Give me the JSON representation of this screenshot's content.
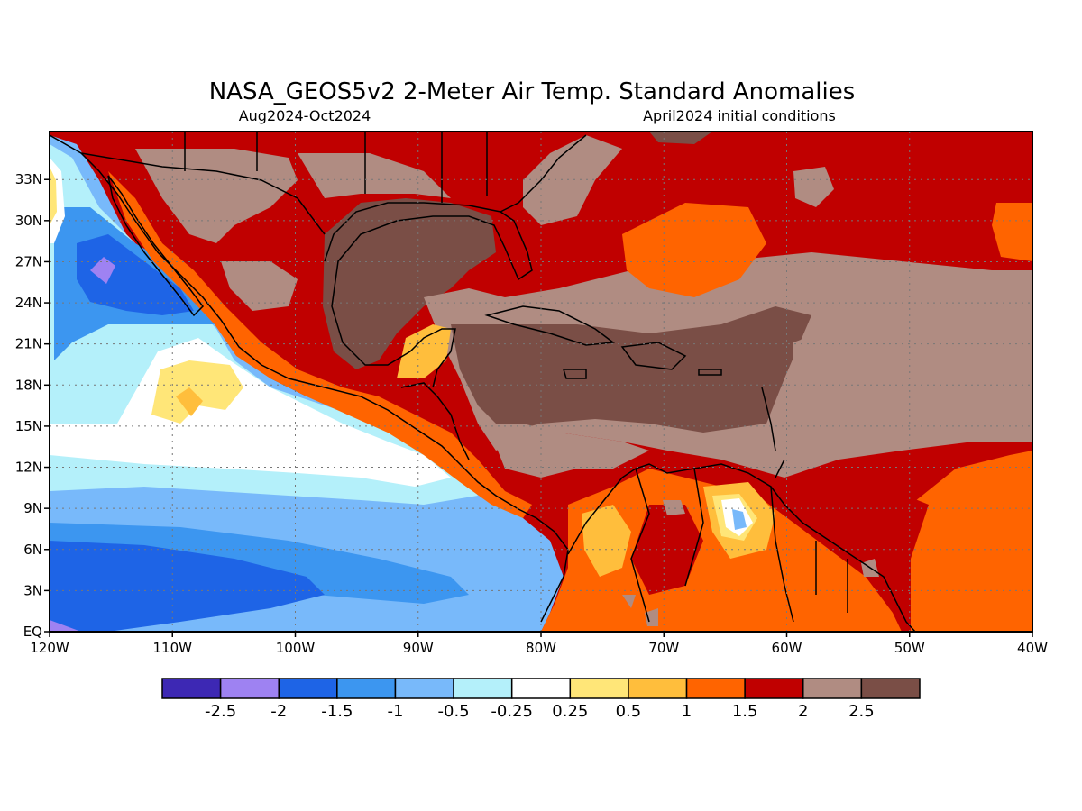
{
  "title": "NASA_GEOS5v2 2-Meter Air Temp. Standard Anomalies",
  "subtitle_left": "Aug2024-Oct2024",
  "subtitle_right": "April2024 initial conditions",
  "map": {
    "lon_range": [
      -120,
      -40
    ],
    "lat_range": [
      0,
      35
    ],
    "x_ticks": [
      {
        "value": -120,
        "label": "120W"
      },
      {
        "value": -110,
        "label": "110W"
      },
      {
        "value": -100,
        "label": "100W"
      },
      {
        "value": -90,
        "label": "90W"
      },
      {
        "value": -80,
        "label": "80W"
      },
      {
        "value": -70,
        "label": "70W"
      },
      {
        "value": -60,
        "label": "60W"
      },
      {
        "value": -50,
        "label": "50W"
      },
      {
        "value": -40,
        "label": "40W"
      }
    ],
    "y_ticks": [
      {
        "value": 0,
        "label": "EQ"
      },
      {
        "value": 3,
        "label": "3N"
      },
      {
        "value": 6,
        "label": "6N"
      },
      {
        "value": 9,
        "label": "9N"
      },
      {
        "value": 12,
        "label": "12N"
      },
      {
        "value": 15,
        "label": "15N"
      },
      {
        "value": 18,
        "label": "18N"
      },
      {
        "value": 21,
        "label": "21N"
      },
      {
        "value": 24,
        "label": "24N"
      },
      {
        "value": 27,
        "label": "27N"
      },
      {
        "value": 30,
        "label": "30N"
      },
      {
        "value": 33,
        "label": "33N"
      }
    ],
    "grid": "dotted"
  },
  "colorbar": {
    "colors": [
      "#3d28b4",
      "#9e82f2",
      "#1e64e6",
      "#3c96f0",
      "#78b9fa",
      "#b4f0fa",
      "#ffffff",
      "#ffe678",
      "#ffbe3c",
      "#ff6400",
      "#c00000",
      "#b08c82",
      "#7a4e46"
    ],
    "labels": [
      "-2.5",
      "-2",
      "-1.5",
      "-1",
      "-0.5",
      "-0.25",
      "0.25",
      "0.5",
      "1",
      "1.5",
      "2",
      "2.5"
    ]
  }
}
